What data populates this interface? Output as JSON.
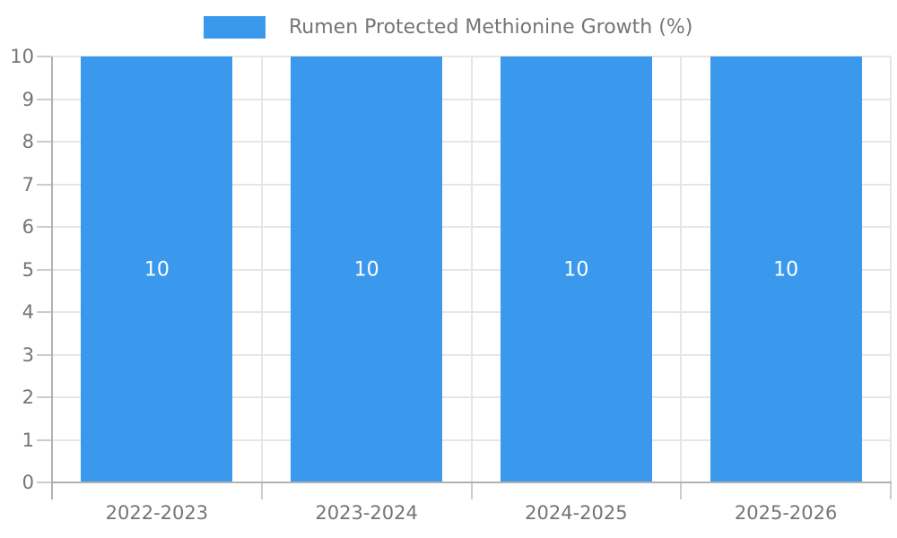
{
  "chart_data": {
    "type": "bar",
    "title": "",
    "categories": [
      "2022-2023",
      "2023-2024",
      "2024-2025",
      "2025-2026"
    ],
    "series": [
      {
        "name": "Rumen Protected Methionine Growth (%)",
        "values": [
          10,
          10,
          10,
          10
        ]
      }
    ],
    "bar_value_labels": [
      "10",
      "10",
      "10",
      "10"
    ],
    "xlabel": "",
    "ylabel": "",
    "ylim": [
      0,
      10
    ],
    "yticks": [
      0,
      1,
      2,
      3,
      4,
      5,
      6,
      7,
      8,
      9,
      10
    ],
    "legend_position": "top-center",
    "grid": true,
    "colors": {
      "bar": "#3a99ec",
      "bar_label": "#ffffff",
      "axis_text": "#757575",
      "legend_text": "#757575",
      "axis_line": "#b1b1b1",
      "gridline": "#e6e6e6",
      "tick": "#cccccc",
      "background": "#ffffff"
    }
  }
}
